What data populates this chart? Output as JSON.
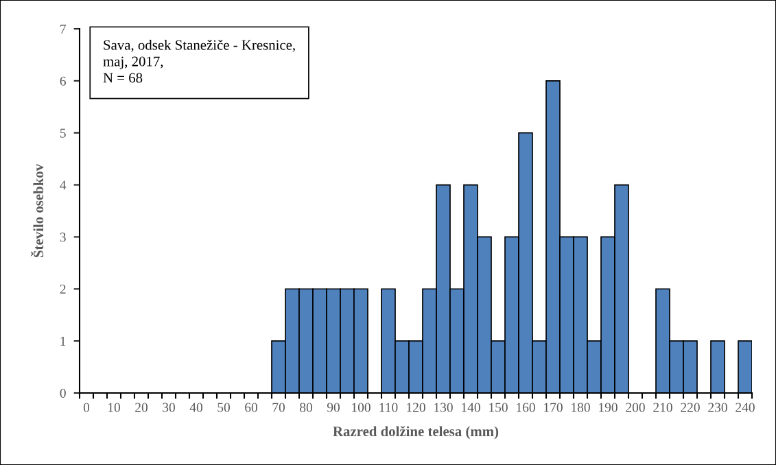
{
  "chart_data": {
    "type": "bar",
    "xlabel": "Razred dolžine telesa (mm)",
    "ylabel": "Število osebkov",
    "categories": [
      "0",
      null,
      "10",
      null,
      "20",
      null,
      "30",
      null,
      "40",
      null,
      "50",
      null,
      "60",
      null,
      "70",
      null,
      "80",
      null,
      "90",
      null,
      "100",
      null,
      "110",
      null,
      "120",
      null,
      "130",
      null,
      "140",
      null,
      "150",
      null,
      "160",
      null,
      "170",
      null,
      "180",
      null,
      "190",
      null,
      "200",
      null,
      "210",
      null,
      "220",
      null,
      "230",
      null,
      "240"
    ],
    "values": [
      0,
      0,
      0,
      0,
      0,
      0,
      0,
      0,
      0,
      0,
      0,
      0,
      0,
      0,
      1,
      2,
      2,
      2,
      2,
      2,
      2,
      0,
      2,
      1,
      1,
      2,
      4,
      2,
      4,
      3,
      1,
      3,
      5,
      1,
      6,
      3,
      3,
      1,
      3,
      4,
      0,
      0,
      2,
      1,
      1,
      0,
      1,
      0,
      1
    ],
    "color": "#4f81bd",
    "ylim": [
      0,
      7
    ],
    "yticks": [
      0,
      1,
      2,
      3,
      4,
      5,
      6,
      7
    ],
    "grid": false,
    "legend": false,
    "annotations": [
      "Sava, odsek Stanežiče - Kresnice,\nmaj, 2017,\nN = 68"
    ]
  }
}
